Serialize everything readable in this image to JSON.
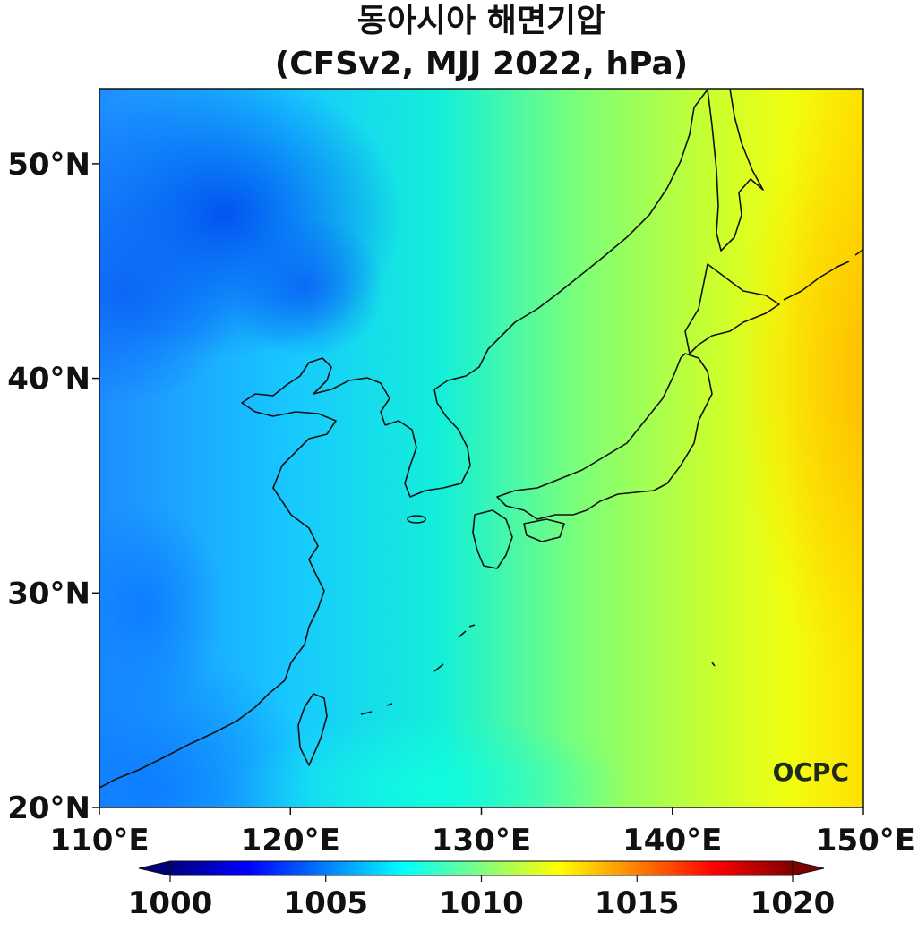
{
  "title": {
    "line1": "동아시아 해면기압",
    "line2": "(CFSv2, MJJ 2022, hPa)"
  },
  "map": {
    "lon_range": [
      110,
      150
    ],
    "lat_range": [
      20,
      53.5
    ],
    "lat_ticks": [
      {
        "value": 50,
        "label": "50°N"
      },
      {
        "value": 40,
        "label": "40°N"
      },
      {
        "value": 30,
        "label": "30°N"
      },
      {
        "value": 20,
        "label": "20°N"
      }
    ],
    "lon_ticks": [
      {
        "value": 110,
        "label": "110°E"
      },
      {
        "value": 120,
        "label": "120°E"
      },
      {
        "value": 130,
        "label": "130°E"
      },
      {
        "value": 140,
        "label": "140°E"
      },
      {
        "value": 150,
        "label": "150°E"
      }
    ],
    "logo": "OCPC"
  },
  "colorbar": {
    "min": 1000,
    "max": 1020,
    "extend": "both",
    "ticks": [
      {
        "value": 1000,
        "label": "1000"
      },
      {
        "value": 1005,
        "label": "1005"
      },
      {
        "value": 1010,
        "label": "1010"
      },
      {
        "value": 1015,
        "label": "1015"
      },
      {
        "value": 1020,
        "label": "1020"
      }
    ],
    "colormap": [
      "#00007f",
      "#0000ff",
      "#007fff",
      "#00ffff",
      "#7fff7f",
      "#ffff00",
      "#ff7f00",
      "#ff0000",
      "#7f0000"
    ]
  }
}
